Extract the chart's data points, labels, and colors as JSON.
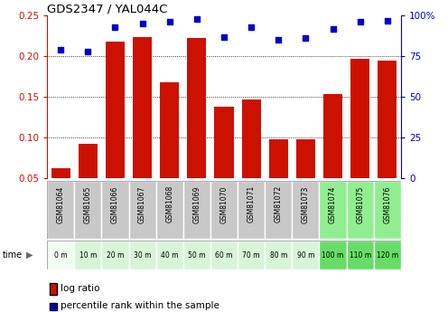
{
  "title": "GDS2347 / YAL044C",
  "categories": [
    "GSM81064",
    "GSM81065",
    "GSM81066",
    "GSM81067",
    "GSM81068",
    "GSM81069",
    "GSM81070",
    "GSM81071",
    "GSM81072",
    "GSM81073",
    "GSM81074",
    "GSM81075",
    "GSM81076"
  ],
  "time_labels": [
    "0 m",
    "10 m",
    "20 m",
    "30 m",
    "40 m",
    "50 m",
    "60 m",
    "70 m",
    "80 m",
    "90 m",
    "100 m",
    "110 m",
    "120 m"
  ],
  "log_ratio": [
    0.062,
    0.092,
    0.218,
    0.224,
    0.168,
    0.222,
    0.138,
    0.147,
    0.098,
    0.097,
    0.153,
    0.197,
    0.195
  ],
  "percentile_rank": [
    79,
    78,
    93,
    95,
    96,
    98,
    87,
    93,
    85,
    86,
    92,
    96,
    97
  ],
  "bar_color": "#cc1100",
  "dot_color": "#0000cc",
  "left_axis_color": "#cc1100",
  "right_axis_color": "#0000cc",
  "ylim_left": [
    0.05,
    0.25
  ],
  "ylim_right": [
    0,
    100
  ],
  "yticks_left": [
    0.05,
    0.1,
    0.15,
    0.2,
    0.25
  ],
  "yticks_right": [
    0,
    25,
    50,
    75,
    100
  ],
  "grid_values": [
    0.1,
    0.15,
    0.2
  ],
  "bg_colors_gsm": [
    "#c8c8c8",
    "#c8c8c8",
    "#c8c8c8",
    "#c8c8c8",
    "#c8c8c8",
    "#c8c8c8",
    "#c8c8c8",
    "#c8c8c8",
    "#c8c8c8",
    "#c8c8c8",
    "#90ee90",
    "#90ee90",
    "#90ee90"
  ],
  "bg_colors_time": [
    "#f0fff0",
    "#d8f5d8",
    "#d8f5d8",
    "#d8f5d8",
    "#d8f5d8",
    "#d8f5d8",
    "#d8f5d8",
    "#d8f5d8",
    "#d8f5d8",
    "#d8f5d8",
    "#66dd66",
    "#66dd66",
    "#66dd66"
  ],
  "legend_log_ratio": "log ratio",
  "legend_percentile": "percentile rank within the sample",
  "fig_width": 4.96,
  "fig_height": 3.45
}
